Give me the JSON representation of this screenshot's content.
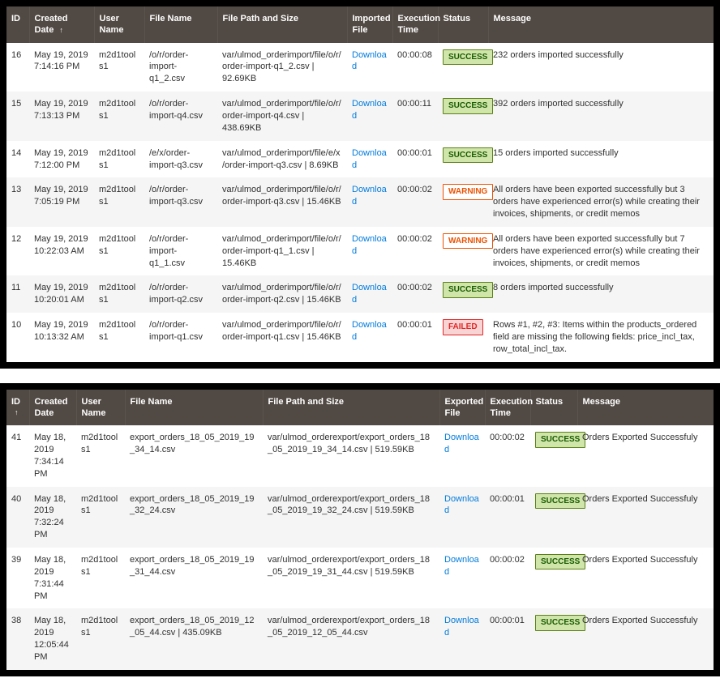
{
  "import_table": {
    "headers": {
      "id": "ID",
      "created": "Created Date",
      "user": "User Name",
      "fname": "File Name",
      "path": "File Path and Size",
      "dl": "Imported File",
      "exec": "Execution Time",
      "status": "Status",
      "msg": "Message"
    },
    "download_label": "Download",
    "rows": [
      {
        "id": "16",
        "date": "May 19, 2019 7:14:16 PM",
        "user": "m2d1tools1",
        "fname": "/o/r/order-import-q1_2.csv",
        "path": "var/ulmod_orderimport/file/o/r/order-import-q1_2.csv | 92.69KB",
        "exec": "00:00:08",
        "status": "SUCCESS",
        "msg": "232 orders imported successfully"
      },
      {
        "id": "15",
        "date": "May 19, 2019 7:13:13 PM",
        "user": "m2d1tools1",
        "fname": "/o/r/order-import-q4.csv",
        "path": "var/ulmod_orderimport/file/o/r/order-import-q4.csv | 438.69KB",
        "exec": "00:00:11",
        "status": "SUCCESS",
        "msg": "392 orders imported successfully"
      },
      {
        "id": "14",
        "date": "May 19, 2019 7:12:00 PM",
        "user": "m2d1tools1",
        "fname": "/e/x/order-import-q3.csv",
        "path": "var/ulmod_orderimport/file/e/x/order-import-q3.csv | 8.69KB",
        "exec": "00:00:01",
        "status": "SUCCESS",
        "msg": "15 orders imported successfully"
      },
      {
        "id": "13",
        "date": "May 19, 2019 7:05:19 PM",
        "user": "m2d1tools1",
        "fname": "/o/r/order-import-q3.csv",
        "path": "var/ulmod_orderimport/file/o/r/order-import-q3.csv | 15.46KB",
        "exec": "00:00:02",
        "status": "WARNING",
        "msg": "All orders have been exported successfully but 3 orders have experienced error(s) while creating their invoices, shipments, or credit memos"
      },
      {
        "id": "12",
        "date": "May 19, 2019 10:22:03 AM",
        "user": "m2d1tools1",
        "fname": "/o/r/order-import-q1_1.csv",
        "path": "var/ulmod_orderimport/file/o/r/order-import-q1_1.csv | 15.46KB",
        "exec": "00:00:02",
        "status": "WARNING",
        "msg": "All orders have been exported successfully but 7 orders have experienced error(s) while creating their invoices, shipments, or credit memos"
      },
      {
        "id": "11",
        "date": "May 19, 2019 10:20:01 AM",
        "user": "m2d1tools1",
        "fname": "/o/r/order-import-q2.csv",
        "path": "var/ulmod_orderimport/file/o/r/order-import-q2.csv | 15.46KB",
        "exec": "00:00:02",
        "status": "SUCCESS",
        "msg": "8 orders imported successfully"
      },
      {
        "id": "10",
        "date": "May 19, 2019 10:13:32 AM",
        "user": "m2d1tools1",
        "fname": "/o/r/order-import-q1.csv",
        "path": "var/ulmod_orderimport/file/o/r/order-import-q1.csv | 15.46KB",
        "exec": "00:00:01",
        "status": "FAILED",
        "msg": "Rows #1, #2, #3: Items within the products_ordered field are missing the following fields: price_incl_tax, row_total_incl_tax."
      }
    ]
  },
  "export_table": {
    "headers": {
      "id": "ID",
      "created": "Created Date",
      "user": "User Name",
      "fname": "File Name",
      "path": "File Path and Size",
      "dl": "Exported File",
      "exec": "Execution Time",
      "status": "Status",
      "msg": "Message"
    },
    "download_label": "Download",
    "rows": [
      {
        "id": "41",
        "date": "May 18, 2019 7:34:14 PM",
        "user": "m2d1tools1",
        "fname": "export_orders_18_05_2019_19_34_14.csv",
        "path": "var/ulmod_orderexport/export_orders_18_05_2019_19_34_14.csv | 519.59KB",
        "exec": "00:00:02",
        "status": "SUCCESS",
        "msg": "Orders Exported Successfuly"
      },
      {
        "id": "40",
        "date": "May 18, 2019 7:32:24 PM",
        "user": "m2d1tools1",
        "fname": "export_orders_18_05_2019_19_32_24.csv",
        "path": "var/ulmod_orderexport/export_orders_18_05_2019_19_32_24.csv | 519.59KB",
        "exec": "00:00:01",
        "status": "SUCCESS",
        "msg": "Orders Exported Successfuly"
      },
      {
        "id": "39",
        "date": "May 18, 2019 7:31:44 PM",
        "user": "m2d1tools1",
        "fname": "export_orders_18_05_2019_19_31_44.csv",
        "path": "var/ulmod_orderexport/export_orders_18_05_2019_19_31_44.csv | 519.59KB",
        "exec": "00:00:02",
        "status": "SUCCESS",
        "msg": "Orders Exported Successfuly"
      },
      {
        "id": "38",
        "date": "May 18, 2019 12:05:44 PM",
        "user": "m2d1tools1",
        "fname": "export_orders_18_05_2019_12_05_44.csv | 435.09KB",
        "path": "var/ulmod_orderexport/export_orders_18_05_2019_12_05_44.csv",
        "exec": "00:00:01",
        "status": "SUCCESS",
        "msg": "Orders Exported Successfuly"
      }
    ]
  },
  "colors": {
    "header_bg": "#514943",
    "row_alt": "#f5f5f5",
    "link": "#007bdb",
    "success_bg": "#d0e5a9",
    "success_border": "#5b8116",
    "warning_border": "#eb5202",
    "failed_bg": "#f9d4d4",
    "failed_border": "#e22626"
  }
}
